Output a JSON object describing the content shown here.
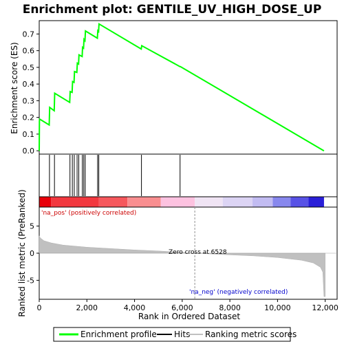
{
  "chart_data": {
    "type": "line",
    "title": "Enrichment plot: GENTILE_UV_HIGH_DOSE_UP",
    "es_panel": {
      "ylabel": "Enrichment score (ES)",
      "ylim": [
        -0.02,
        0.78
      ],
      "yticks": [
        "0.0",
        "0.1",
        "0.2",
        "0.3",
        "0.4",
        "0.5",
        "0.6",
        "0.7"
      ],
      "ytick_values": [
        0.0,
        0.1,
        0.2,
        0.3,
        0.4,
        0.5,
        0.6,
        0.7
      ],
      "line_color": "#00ff00",
      "series": [
        {
          "x": [
            0,
            10,
            20,
            420,
            440,
            630,
            650,
            1280,
            1300,
            1380,
            1400,
            1460,
            1480,
            1580,
            1600,
            1650,
            1670,
            1800,
            1820,
            1860,
            1880,
            1920,
            1940,
            2440,
            2460,
            2490,
            2510,
            4280,
            4300,
            5900,
            5920,
            11950
          ],
          "y": [
            0.0,
            0.18,
            0.19,
            0.155,
            0.26,
            0.24,
            0.345,
            0.29,
            0.355,
            0.35,
            0.415,
            0.41,
            0.475,
            0.47,
            0.525,
            0.52,
            0.575,
            0.565,
            0.62,
            0.615,
            0.668,
            0.66,
            0.718,
            0.675,
            0.72,
            0.715,
            0.76,
            0.61,
            0.63,
            0.505,
            0.505,
            0.0
          ]
        }
      ]
    },
    "hits": [
      0,
      430,
      640,
      1290,
      1390,
      1470,
      1590,
      1660,
      1810,
      1870,
      1930,
      2450,
      2500,
      4290,
      5910
    ],
    "ranked_panel": {
      "ylabel": "Ranked list metric (PreRanked)",
      "ylim": [
        -8.5,
        8.5
      ],
      "yticks": [
        "5",
        "0",
        "-5"
      ],
      "ytick_values": [
        5,
        0,
        -5
      ],
      "pos_label": "'na_pos' (positively correlated)",
      "neg_label": "'na_neg' (negatively correlated)",
      "zero_cross_label": "Zero cross at 6528",
      "zero_cross": 6528,
      "profile": {
        "x": [
          0,
          50,
          200,
          500,
          1000,
          2000,
          3000,
          4000,
          5000,
          6000,
          6528,
          7000,
          8000,
          9000,
          10000,
          11000,
          11500,
          11800,
          11900,
          11950,
          12000
        ],
        "y": [
          3.2,
          2.8,
          2.3,
          1.9,
          1.5,
          1.1,
          0.85,
          0.6,
          0.4,
          0.15,
          0.0,
          -0.1,
          -0.3,
          -0.5,
          -0.8,
          -1.3,
          -1.8,
          -2.6,
          -3.5,
          -8.0,
          -8.0
        ]
      }
    },
    "colorbar": {
      "colors": [
        "#e8000a",
        "#f2383f",
        "#f6585d",
        "#f98e90",
        "#fdc2e0",
        "#f0e4f4",
        "#dcd4f4",
        "#c2bcf2",
        "#8888ee",
        "#5852e6",
        "#2a1fd8",
        "#1800c6"
      ],
      "stops": [
        0,
        500,
        2500,
        3700,
        5100,
        6528,
        7700,
        8950,
        9800,
        10550,
        11300,
        11950
      ]
    },
    "xaxis": {
      "label": "Rank in Ordered Dataset",
      "xlim": [
        0,
        12500
      ],
      "ticks": [
        "0",
        "2,000",
        "4,000",
        "6,000",
        "8,000",
        "10,000",
        "12,000"
      ],
      "tick_values": [
        0,
        2000,
        4000,
        6000,
        8000,
        10000,
        12000
      ]
    },
    "legend": {
      "items": [
        {
          "label": "Enrichment profile",
          "color": "#00ff00"
        },
        {
          "label": "Hits",
          "color": "#000000"
        },
        {
          "label": "Ranking metric scores",
          "color": "#c0c0c0"
        }
      ]
    }
  }
}
